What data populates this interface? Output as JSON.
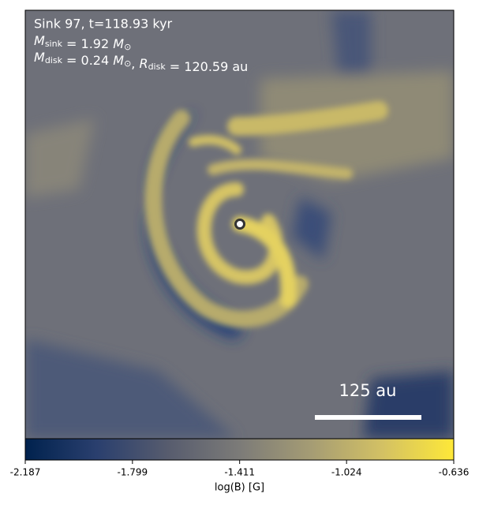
{
  "chart_data": {
    "type": "image",
    "title": "Sink 97, t=118.93 kyr",
    "annotation_lines": [
      [
        {
          "text": "M",
          "sub": "sink"
        },
        {
          "text": " = 1.92 "
        },
        {
          "text": "M",
          "sub": "⊙"
        }
      ],
      [
        {
          "text": "M",
          "sub": "disk"
        },
        {
          "text": " = 0.24 "
        },
        {
          "text": "M",
          "sub": "⊙"
        },
        {
          "text": ", "
        },
        {
          "text": "R",
          "sub": "disk"
        },
        {
          "text": " = 120.59 au"
        }
      ]
    ],
    "scale_bar_label": "125 au",
    "colorbar": {
      "label": "log(B) [G]",
      "lim": [
        -2.187,
        -0.636
      ],
      "ticks": [
        -2.187,
        -1.799,
        -1.411,
        -1.024,
        -0.636
      ],
      "colors": [
        "#00224e",
        "#2a3f6e",
        "#575c6e",
        "#7c7b78",
        "#a59c74",
        "#d3c164",
        "#fee838"
      ]
    }
  }
}
